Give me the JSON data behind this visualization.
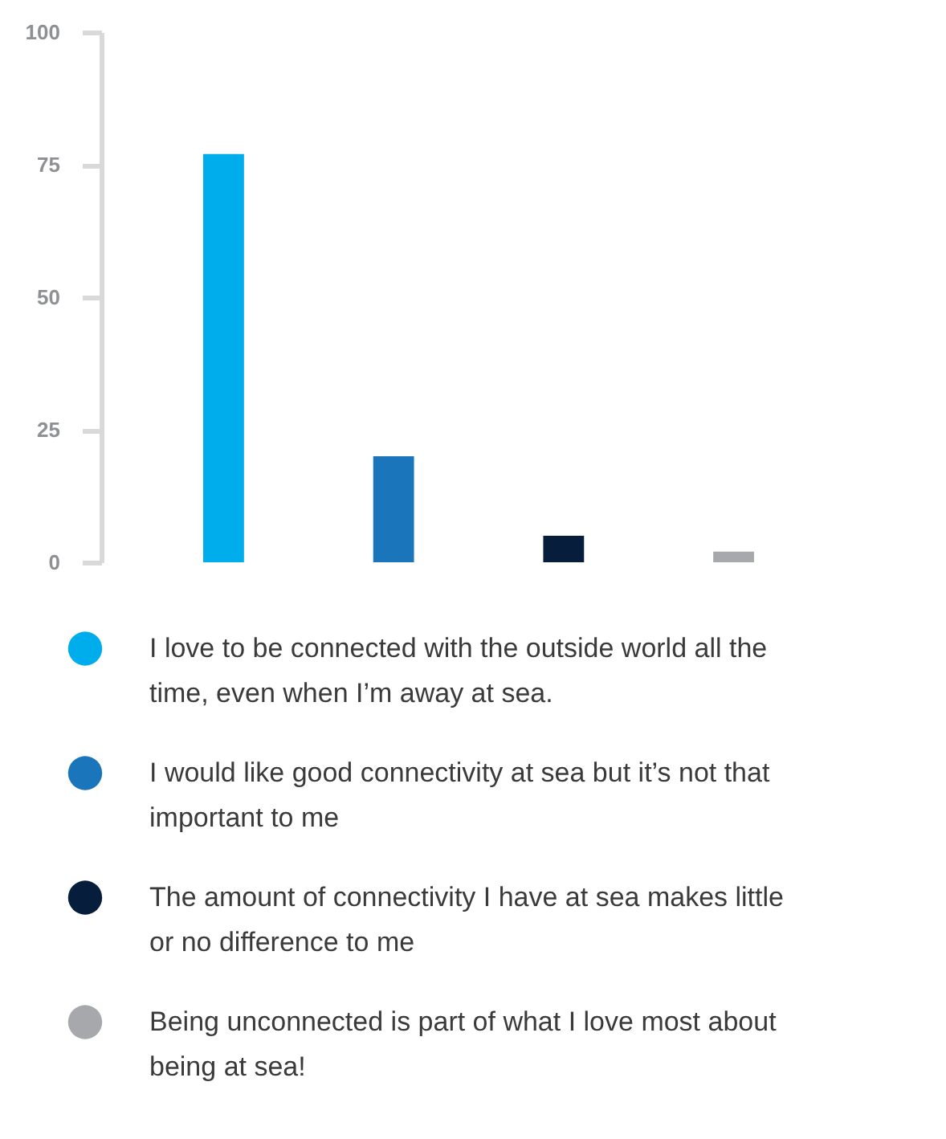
{
  "chart_data": {
    "type": "bar",
    "categories": [
      null,
      null,
      null,
      null
    ],
    "series": [
      {
        "name": "I love to be connected with the outside world all the time, even when I’m away at sea.",
        "color": "#00adec",
        "values": [
          77,
          null,
          null,
          null
        ]
      },
      {
        "name": "I would like good connectivity at sea but it’s not that important to me",
        "color": "#1b75bb",
        "values": [
          null,
          20,
          null,
          null
        ]
      },
      {
        "name": "The amount of connectivity I have at sea makes little or no difference to me",
        "color": "#061d3c",
        "values": [
          null,
          null,
          5,
          null
        ]
      },
      {
        "name": "Being unconnected is part of what I love most about being at sea!",
        "color": "#a6a8ab",
        "values": [
          null,
          null,
          null,
          2
        ]
      }
    ],
    "stacked": true,
    "ylim": [
      0,
      100
    ],
    "yticks": [
      0,
      25,
      50,
      75,
      100
    ],
    "grid": false,
    "legend": "bottom"
  }
}
